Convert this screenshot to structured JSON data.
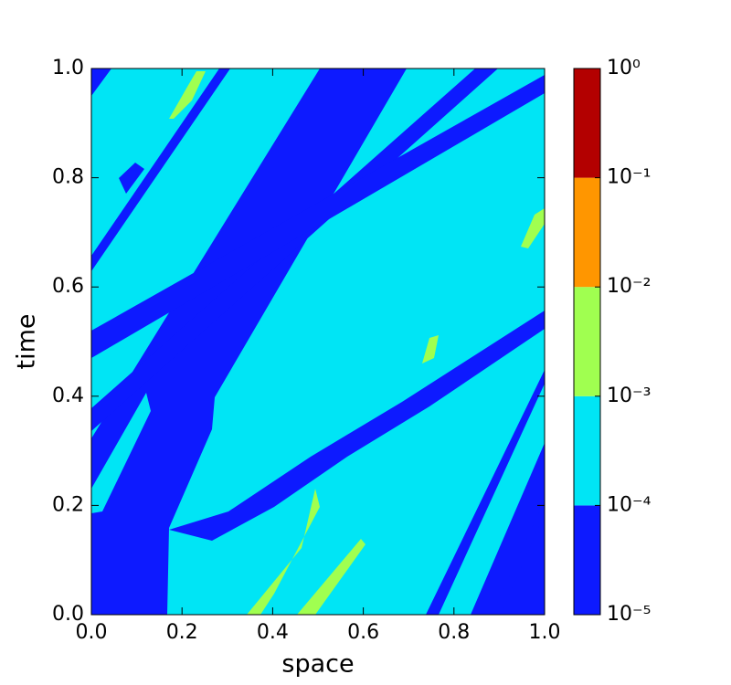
{
  "chart_data": {
    "type": "contour",
    "x_label": "space",
    "y_label": "time",
    "xlim": [
      0,
      1
    ],
    "ylim": [
      0,
      1
    ],
    "xticks": [
      {
        "value": 0,
        "label": "0.0"
      },
      0.2,
      0.4,
      0.6,
      0.8,
      {
        "value": 1,
        "label": "1.0"
      }
    ],
    "yticks": [
      {
        "value": 0,
        "label": "0.0"
      },
      0.2,
      0.4,
      0.6,
      0.8,
      {
        "value": 1,
        "label": "1.0"
      }
    ],
    "colorbar": {
      "scale": "log",
      "ticks": [
        {
          "value": 1e-05,
          "label": "10⁻⁵"
        },
        {
          "value": 0.0001,
          "label": "10⁻⁴"
        },
        {
          "value": 0.001,
          "label": "10⁻³"
        },
        {
          "value": 0.01,
          "label": "10⁻²"
        },
        {
          "value": 0.1,
          "label": "10⁻¹"
        },
        {
          "value": 1,
          "label": "10⁰"
        }
      ],
      "colors": [
        "#0d1aff",
        "#00e5f5",
        "#a0ff50",
        "#ff9600",
        "#b30000"
      ]
    }
  }
}
